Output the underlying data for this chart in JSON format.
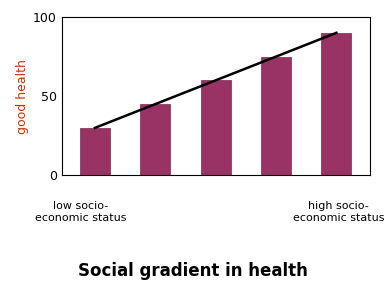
{
  "bar_values": [
    30,
    45,
    60,
    75,
    90
  ],
  "bar_color": "#993366",
  "bar_edge_color": "#7a2850",
  "title": "Social gradient in health",
  "ylabel": "good health",
  "ylabel_color": "#cc3300",
  "ylim": [
    0,
    100
  ],
  "yticks": [
    0,
    50,
    100
  ],
  "xlabel_left": "low socio-\neconomic status",
  "xlabel_right": "high socio-\neconomic status",
  "line_color": "black",
  "line_width": 1.8,
  "title_fontsize": 12,
  "ylabel_fontsize": 9,
  "tick_fontsize": 9,
  "xlabel_fontsize": 8,
  "background_color": "#ffffff",
  "bar_width": 0.5
}
